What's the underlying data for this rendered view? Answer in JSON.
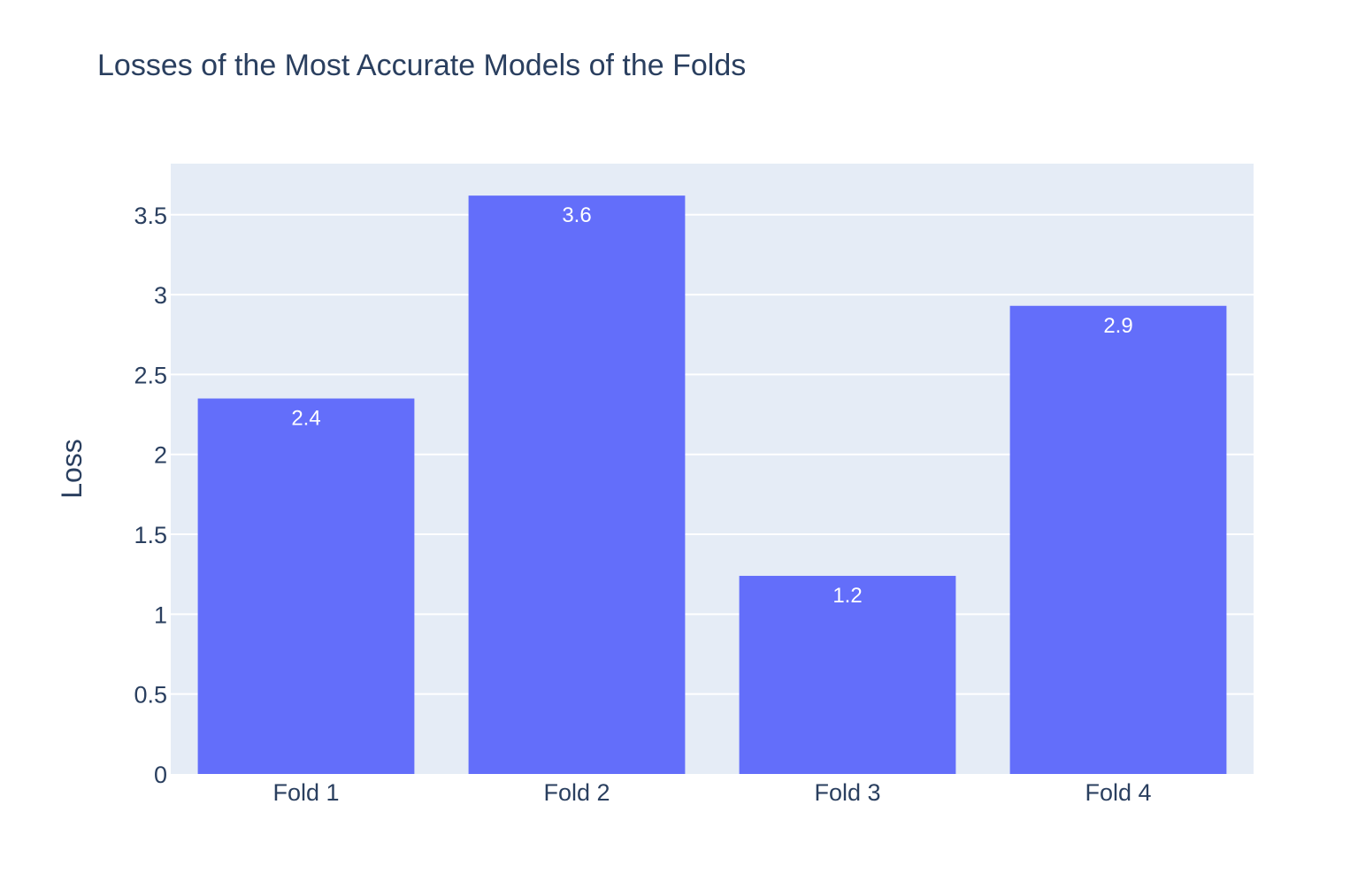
{
  "chart_data": {
    "type": "bar",
    "title": "Losses of the Most Accurate Models of the Folds",
    "xlabel": "",
    "ylabel": "Loss",
    "categories": [
      "Fold 1",
      "Fold 2",
      "Fold 3",
      "Fold 4"
    ],
    "values": [
      2.35,
      3.62,
      1.24,
      2.93
    ],
    "data_labels": [
      "2.4",
      "3.6",
      "1.2",
      "2.9"
    ],
    "ylim": [
      0,
      3.82
    ],
    "yticks": [
      0,
      0.5,
      1,
      1.5,
      2,
      2.5,
      3,
      3.5
    ],
    "ytick_labels": [
      "0",
      "0.5",
      "1",
      "1.5",
      "2",
      "2.5",
      "3",
      "3.5"
    ],
    "grid": true,
    "colors": {
      "bar": "#636efa",
      "plot_background": "#e5ecf6",
      "grid": "#ffffff",
      "text": "#2a3f5f",
      "bar_label": "#ffffff"
    }
  }
}
